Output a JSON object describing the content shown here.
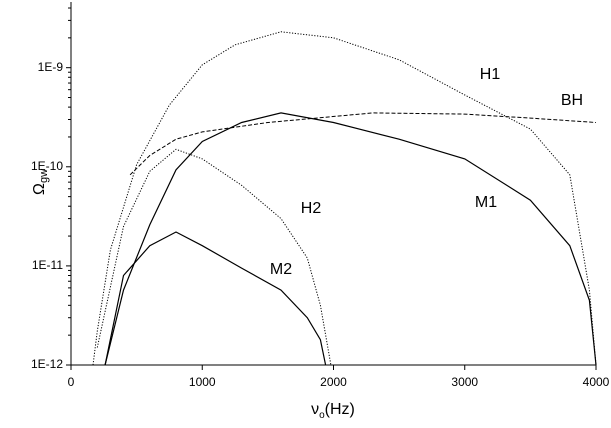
{
  "chart_data": {
    "type": "line",
    "yscale": "log",
    "y_label": "Ω",
    "y_label_sub": "gw",
    "x_label": "ν",
    "x_label_sub": "o",
    "x_label_unit": "(Hz)",
    "xlim": [
      0,
      4000
    ],
    "xticks": [
      0,
      1000,
      2000,
      3000,
      4000
    ],
    "ylim": [
      1e-12,
      4.6e-09
    ],
    "yticks": [
      {
        "value": 1e-12,
        "label": "1E-12"
      },
      {
        "value": 1e-11,
        "label": "1E-11"
      },
      {
        "value": 1e-10,
        "label": "1E-10"
      },
      {
        "value": 1e-09,
        "label": "1E-9"
      }
    ],
    "series": [
      {
        "name": "H1",
        "color": "#000000",
        "dash": "dotted",
        "x": [
          168,
          200,
          300,
          500,
          750,
          1000,
          1250,
          1600,
          2000,
          2500,
          3000,
          3500,
          3800,
          3950,
          4000
        ],
        "values": [
          1e-12,
          2.2e-12,
          1.45e-11,
          1.05e-10,
          4.2e-10,
          1.07e-09,
          1.7e-09,
          2.3e-09,
          2e-09,
          1.2e-09,
          5.3e-10,
          2.4e-10,
          8.3e-11,
          5.7e-12,
          1e-12
        ]
      },
      {
        "name": "BH",
        "color": "#000000",
        "dash": "dashed",
        "x": [
          450,
          600,
          800,
          1000,
          1500,
          2300,
          3000,
          3500,
          4000
        ],
        "values": [
          8.3e-11,
          1.3e-10,
          1.9e-10,
          2.25e-10,
          2.8e-10,
          3.5e-10,
          3.4e-10,
          3.1e-10,
          2.8e-10
        ]
      },
      {
        "name": "M1",
        "color": "#000000",
        "dash": "solid",
        "x": [
          260,
          400,
          600,
          800,
          1000,
          1300,
          1600,
          2000,
          2500,
          3000,
          3500,
          3800,
          3950,
          4000
        ],
        "values": [
          1e-12,
          5.7e-12,
          2.6e-11,
          9.3e-11,
          1.8e-10,
          2.8e-10,
          3.5e-10,
          2.8e-10,
          1.9e-10,
          1.2e-10,
          4.6e-11,
          1.6e-11,
          4.5e-12,
          1e-12
        ]
      },
      {
        "name": "H2",
        "color": "#000000",
        "dash": "dotted",
        "x": [
          200,
          400,
          600,
          800,
          1000,
          1300,
          1600,
          1800,
          1900,
          1980
        ],
        "values": [
          1.5e-12,
          2.5e-11,
          9e-11,
          1.5e-10,
          1.2e-10,
          6.5e-11,
          3e-11,
          1.2e-11,
          4e-12,
          1e-12
        ]
      },
      {
        "name": "M2",
        "color": "#000000",
        "dash": "solid",
        "x": [
          260,
          400,
          600,
          800,
          1000,
          1300,
          1600,
          1800,
          1900,
          1940
        ],
        "values": [
          1e-12,
          8e-12,
          1.6e-11,
          2.2e-11,
          1.6e-11,
          9.5e-12,
          5.7e-12,
          3e-12,
          1.8e-12,
          1e-12
        ]
      }
    ]
  }
}
